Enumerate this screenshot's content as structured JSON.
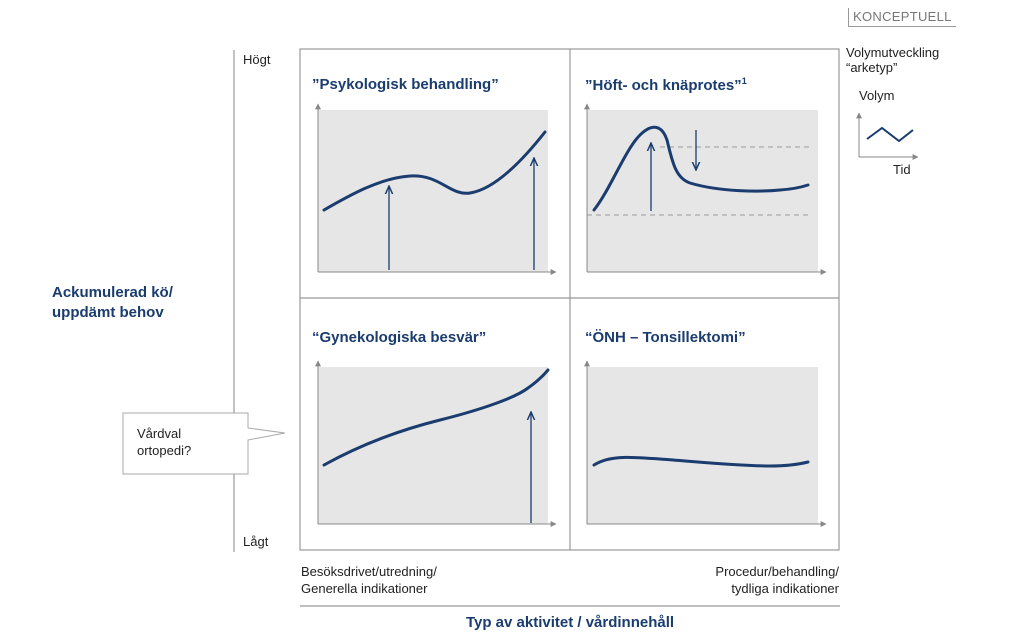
{
  "badge": "KONCEPTUELL",
  "legend": {
    "title_line1": "Volymutveckling",
    "title_line2": "“arketyp”",
    "y_label": "Volym",
    "x_label": "Tid"
  },
  "y_axis": {
    "label_line1": "Ackumulerad kö/",
    "label_line2": "uppdämt behov",
    "high": "Högt",
    "low": "Lågt"
  },
  "x_axis": {
    "label": "Typ av aktivitet / vårdinnehåll",
    "left_line1": "Besöksdrivet/utredning/",
    "left_line2": "Generella indikationer",
    "right_line1": "Procedur/behandling/",
    "right_line2": "tydliga indikationer"
  },
  "quadrants": {
    "top_left": {
      "title": "”Psykologisk behandling”"
    },
    "top_right": {
      "title": "”Höft- och knäprotes”",
      "footnote": "1"
    },
    "bottom_left": {
      "title": "“Gynekologiska besvär”"
    },
    "bottom_right": {
      "title": "“ÖNH – Tonsillektomi”"
    }
  },
  "callout": {
    "line1": "Vårdval",
    "line2": "ortopedi?"
  },
  "colors": {
    "curve": "#1a3c6e",
    "panel": "#e6e6e7",
    "title": "#1a3c6e",
    "grid": "#999999"
  }
}
